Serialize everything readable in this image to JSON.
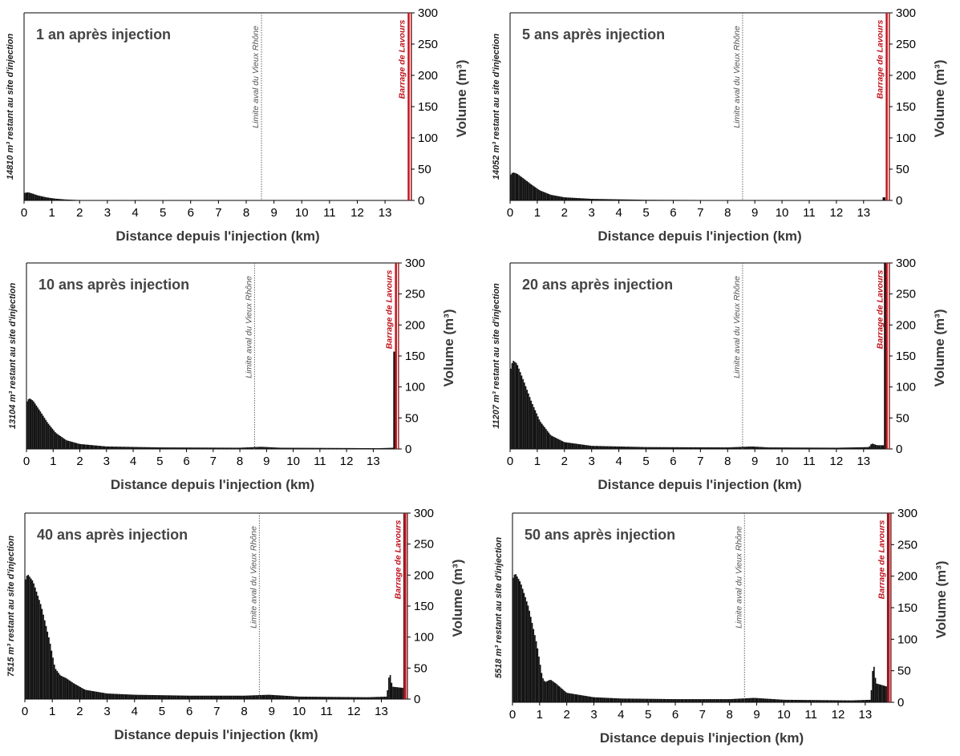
{
  "figure": {
    "xlabel": "Distance depuis l'injection (km)",
    "ylabel": "Volume (m³)",
    "colors": {
      "bars": "#111111",
      "dam": "#c0141e",
      "limit_line": "#666666",
      "title": "#444444",
      "axis_text": "#3a3a3a"
    }
  },
  "chart_data": [
    {
      "type": "bar",
      "title": "1 an après injection",
      "remaining_label": "14810 m³ restant au site d'injection",
      "xlabel": "Distance depuis l'injection (km)",
      "ylabel": "Volume (m³)",
      "xlim": [
        0,
        13.95
      ],
      "ylim": [
        0,
        300
      ],
      "x_ticks": [
        "0",
        "1",
        "2",
        "3",
        "4",
        "5",
        "6",
        "7",
        "8",
        "9",
        "10",
        "11",
        "12",
        "13"
      ],
      "y_ticks": [
        "0",
        "50",
        "100",
        "150",
        "200",
        "250",
        "300"
      ],
      "y_axis_side": "right",
      "vline_limit": {
        "x": 8.55,
        "label": "Limite aval du Vieux Rhône"
      },
      "vline_dam": {
        "x": 13.85,
        "label": "Barrage de Lavours"
      },
      "profile": {
        "points": [
          [
            0,
            12
          ],
          [
            0.15,
            13
          ],
          [
            0.3,
            11
          ],
          [
            0.5,
            8
          ],
          [
            0.8,
            5
          ],
          [
            1.1,
            3
          ],
          [
            1.5,
            1.5
          ],
          [
            2,
            0.6
          ],
          [
            3,
            0.2
          ],
          [
            13.85,
            0
          ]
        ]
      },
      "spikes": []
    },
    {
      "type": "bar",
      "title": "5 ans après injection",
      "remaining_label": "14052 m³ restant au site d'injection",
      "xlabel": "Distance depuis l'injection (km)",
      "ylabel": "Volume (m³)",
      "xlim": [
        0,
        13.95
      ],
      "ylim": [
        0,
        300
      ],
      "x_ticks": [
        "0",
        "1",
        "2",
        "3",
        "4",
        "5",
        "6",
        "7",
        "8",
        "9",
        "10",
        "11",
        "12",
        "13"
      ],
      "y_ticks": [
        "0",
        "50",
        "100",
        "150",
        "200",
        "250",
        "300"
      ],
      "y_axis_side": "right",
      "vline_limit": {
        "x": 8.55,
        "label": "Limite aval du Vieux Rhône"
      },
      "vline_dam": {
        "x": 13.85,
        "label": "Barrage de Lavours"
      },
      "profile": {
        "points": [
          [
            0,
            40
          ],
          [
            0.1,
            45
          ],
          [
            0.25,
            43
          ],
          [
            0.5,
            35
          ],
          [
            0.8,
            25
          ],
          [
            1.1,
            16
          ],
          [
            1.5,
            9
          ],
          [
            2,
            5
          ],
          [
            3,
            2.5
          ],
          [
            5,
            1
          ],
          [
            8,
            0.5
          ],
          [
            13.8,
            0.3
          ]
        ]
      },
      "spikes": [
        {
          "x0": 13.7,
          "x1": 13.8,
          "y": 5
        }
      ]
    },
    {
      "type": "bar",
      "title": "10 ans après injection",
      "remaining_label": "13104 m³ restant au site d'injection",
      "xlabel": "Distance depuis l'injection (km)",
      "ylabel": "Volume (m³)",
      "xlim": [
        0,
        13.95
      ],
      "ylim": [
        0,
        300
      ],
      "x_ticks": [
        "0",
        "1",
        "2",
        "3",
        "4",
        "5",
        "6",
        "7",
        "8",
        "9",
        "10",
        "11",
        "12",
        "13"
      ],
      "y_ticks": [
        "0",
        "50",
        "100",
        "150",
        "200",
        "250",
        "300"
      ],
      "y_axis_side": "right",
      "vline_limit": {
        "x": 8.55,
        "label": "Limite aval du Vieux Rhône"
      },
      "vline_dam": {
        "x": 13.85,
        "label": "Barrage de Lavours"
      },
      "profile": {
        "points": [
          [
            0,
            75
          ],
          [
            0.1,
            82
          ],
          [
            0.25,
            78
          ],
          [
            0.5,
            62
          ],
          [
            0.8,
            42
          ],
          [
            1.1,
            26
          ],
          [
            1.5,
            14
          ],
          [
            2,
            8
          ],
          [
            3,
            4
          ],
          [
            5,
            2.5
          ],
          [
            8,
            2
          ],
          [
            8.8,
            3.5
          ],
          [
            9.5,
            2
          ],
          [
            12,
            1.5
          ],
          [
            13.2,
            1.2
          ],
          [
            13.8,
            2
          ]
        ]
      },
      "spikes": [
        {
          "x0": 13.75,
          "x1": 13.88,
          "y": 157
        }
      ]
    },
    {
      "type": "bar",
      "title": "20 ans après injection",
      "remaining_label": "11207 m³ restant au site d'injection",
      "xlabel": "Distance depuis l'injection (km)",
      "ylabel": "Volume (m³)",
      "xlim": [
        0,
        13.95
      ],
      "ylim": [
        0,
        300
      ],
      "x_ticks": [
        "0",
        "1",
        "2",
        "3",
        "4",
        "5",
        "6",
        "7",
        "8",
        "9",
        "10",
        "11",
        "12",
        "13"
      ],
      "y_ticks": [
        "0",
        "50",
        "100",
        "150",
        "200",
        "250",
        "300"
      ],
      "y_axis_side": "right",
      "vline_limit": {
        "x": 8.55,
        "label": "Limite aval du Vieux Rhône"
      },
      "vline_dam": {
        "x": 13.85,
        "label": "Barrage de Lavours"
      },
      "profile": {
        "points": [
          [
            0,
            125
          ],
          [
            0.1,
            143
          ],
          [
            0.25,
            138
          ],
          [
            0.5,
            110
          ],
          [
            0.8,
            75
          ],
          [
            1.1,
            45
          ],
          [
            1.5,
            22
          ],
          [
            2,
            11
          ],
          [
            3,
            5
          ],
          [
            5,
            3
          ],
          [
            8,
            2.5
          ],
          [
            8.9,
            4
          ],
          [
            9.5,
            2.5
          ],
          [
            12,
            2
          ],
          [
            13.2,
            3
          ],
          [
            13.3,
            9
          ],
          [
            13.5,
            6
          ],
          [
            13.75,
            6
          ]
        ]
      },
      "spikes": [
        {
          "x0": 13.75,
          "x1": 13.88,
          "y": 300
        }
      ]
    },
    {
      "type": "bar",
      "title": "40 ans après injection",
      "remaining_label": "7515 m³ restant au site d'injection",
      "xlabel": "Distance depuis l'injection (km)",
      "ylabel": "Volume (m³)",
      "xlim": [
        0,
        13.95
      ],
      "ylim": [
        0,
        300
      ],
      "x_ticks": [
        "0",
        "1",
        "2",
        "3",
        "4",
        "5",
        "6",
        "7",
        "8",
        "9",
        "10",
        "11",
        "12",
        "13"
      ],
      "y_ticks": [
        "0",
        "50",
        "100",
        "150",
        "200",
        "250",
        "300"
      ],
      "y_axis_side": "right",
      "vline_limit": {
        "x": 8.55,
        "label": "Limite aval du Vieux Rhône"
      },
      "vline_dam": {
        "x": 13.85,
        "label": "Barrage de Lavours"
      },
      "profile": {
        "points": [
          [
            0,
            190
          ],
          [
            0.1,
            202
          ],
          [
            0.3,
            190
          ],
          [
            0.6,
            150
          ],
          [
            0.9,
            95
          ],
          [
            1.1,
            50
          ],
          [
            1.3,
            38
          ],
          [
            1.5,
            34
          ],
          [
            1.8,
            25
          ],
          [
            2.2,
            15
          ],
          [
            3,
            9
          ],
          [
            4,
            7
          ],
          [
            6,
            5.5
          ],
          [
            8,
            5.5
          ],
          [
            8.9,
            7
          ],
          [
            10,
            4
          ],
          [
            12.5,
            3
          ],
          [
            13.2,
            4
          ],
          [
            13.3,
            45
          ],
          [
            13.4,
            20
          ],
          [
            13.8,
            18
          ]
        ]
      },
      "spikes": [
        {
          "x0": 13.8,
          "x1": 13.9,
          "y": 300
        }
      ]
    },
    {
      "type": "bar",
      "title": "50 ans après injection",
      "remaining_label": "5518 m³ restant au site d'injection",
      "xlabel": "Distance depuis l'injection (km)",
      "ylabel": "Volume (m³)",
      "xlim": [
        0,
        13.95
      ],
      "ylim": [
        0,
        300
      ],
      "x_ticks": [
        "0",
        "1",
        "2",
        "3",
        "4",
        "5",
        "6",
        "7",
        "8",
        "9",
        "10",
        "11",
        "12",
        "13"
      ],
      "y_ticks": [
        "0",
        "50",
        "100",
        "150",
        "200",
        "250",
        "300"
      ],
      "y_axis_side": "right",
      "vline_limit": {
        "x": 8.55,
        "label": "Limite aval du Vieux Rhône"
      },
      "vline_dam": {
        "x": 13.85,
        "label": "Barrage de Lavours"
      },
      "profile": {
        "points": [
          [
            0,
            195
          ],
          [
            0.1,
            205
          ],
          [
            0.3,
            190
          ],
          [
            0.6,
            150
          ],
          [
            0.9,
            92
          ],
          [
            1.1,
            40
          ],
          [
            1.2,
            32
          ],
          [
            1.4,
            36
          ],
          [
            1.6,
            30
          ],
          [
            2,
            15
          ],
          [
            3,
            8
          ],
          [
            4,
            6
          ],
          [
            6,
            5
          ],
          [
            8,
            5
          ],
          [
            8.9,
            7
          ],
          [
            10,
            4
          ],
          [
            12.5,
            3
          ],
          [
            13.2,
            4
          ],
          [
            13.3,
            65
          ],
          [
            13.4,
            30
          ],
          [
            13.8,
            25
          ]
        ]
      },
      "spikes": [
        {
          "x0": 13.8,
          "x1": 13.9,
          "y": 300
        }
      ]
    }
  ]
}
